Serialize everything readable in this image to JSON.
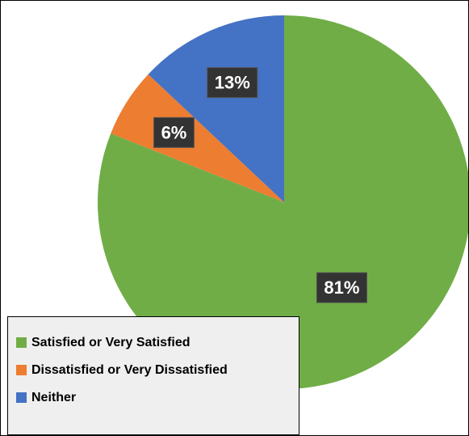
{
  "chart_data": {
    "type": "pie",
    "title": "",
    "slices": [
      {
        "label": "Satisfied or Very Satisfied",
        "value": 81,
        "display": "81%",
        "color": "#70ad47"
      },
      {
        "label": "Dissatisfied or Very Dissatisfied",
        "value": 6,
        "display": "6%",
        "color": "#ed7d31"
      },
      {
        "label": "Neither",
        "value": 13,
        "display": "13%",
        "color": "#4472c4"
      }
    ],
    "legend_position": "bottom-left"
  }
}
